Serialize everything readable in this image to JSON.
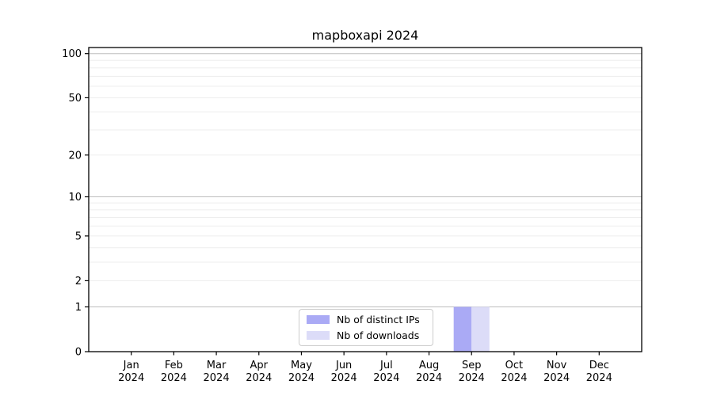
{
  "colors": {
    "distinct_ips": "#aaaaf5",
    "downloads": "#dcdcf8",
    "grid_major": "#bdbdbd",
    "grid_minor": "#ededed",
    "axis": "#000000",
    "text": "#000000",
    "background": "#ffffff",
    "legend_border": "#cccccc"
  },
  "chart_data": {
    "type": "bar",
    "title": "mapboxapi 2024",
    "categories": [
      "Jan",
      "Feb",
      "Mar",
      "Apr",
      "May",
      "Jun",
      "Jul",
      "Aug",
      "Sep",
      "Oct",
      "Nov",
      "Dec"
    ],
    "year_label": "2024",
    "series": [
      {
        "name": "Nb of distinct IPs",
        "color_key": "distinct_ips",
        "values": [
          0,
          0,
          0,
          0,
          0,
          0,
          0,
          0,
          1,
          0,
          0,
          0
        ]
      },
      {
        "name": "Nb of downloads",
        "color_key": "downloads",
        "values": [
          0,
          0,
          0,
          0,
          0,
          0,
          0,
          0,
          1,
          0,
          0,
          0
        ]
      }
    ],
    "xlabel": "",
    "ylabel": "",
    "yscale": "log1p",
    "ylim": [
      0,
      110
    ],
    "yticks": [
      0,
      1,
      2,
      5,
      10,
      20,
      50,
      100
    ],
    "grid_major_at": [
      1,
      10,
      100
    ],
    "grid_minor_at": [
      2,
      3,
      4,
      5,
      6,
      7,
      8,
      9,
      20,
      30,
      40,
      50,
      60,
      70,
      80,
      90
    ],
    "grid": "on",
    "legend_position": "lower center"
  }
}
